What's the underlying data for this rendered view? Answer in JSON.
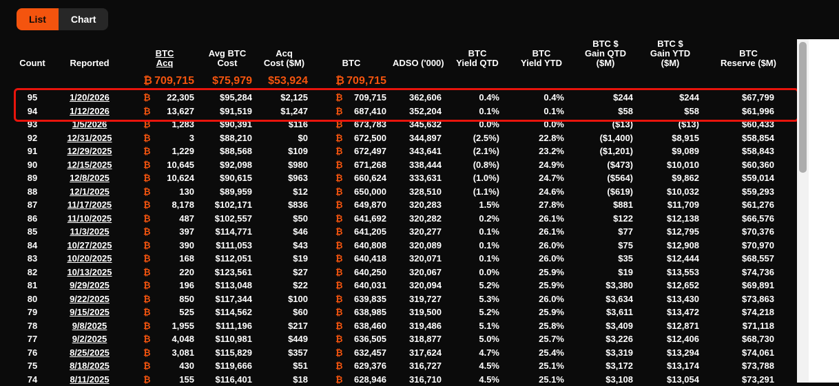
{
  "colors": {
    "accent": "#f4540e",
    "highlight": "#e8140c"
  },
  "btc_symbol": "₿",
  "view_toggle": {
    "list_label": "List",
    "chart_label": "Chart",
    "active_view": "List"
  },
  "table": {
    "headers": {
      "count": [
        "Count"
      ],
      "reported": [
        "Reported"
      ],
      "btc_acq": [
        "BTC",
        "Acq"
      ],
      "avg_cost": [
        "Avg BTC",
        "Cost"
      ],
      "acq_cost": [
        "Acq",
        "Cost ($M)"
      ],
      "btc": [
        "BTC"
      ],
      "adso": [
        "ADSO ('000)"
      ],
      "yield_qtd": [
        "BTC",
        "Yield QTD"
      ],
      "yield_ytd": [
        "BTC",
        "Yield YTD"
      ],
      "gain_qtd": [
        "BTC $",
        "Gain QTD",
        "($M)"
      ],
      "gain_ytd": [
        "BTC $",
        "Gain YTD",
        "($M)"
      ],
      "reserve": [
        "BTC",
        "Reserve ($M)"
      ]
    },
    "totals": {
      "btc_acq": "709,715",
      "avg_cost": "$75,979",
      "acq_cost": "$53,924",
      "btc": "709,715"
    },
    "rows": [
      [
        "95",
        "1/20/2026",
        "22,305",
        "$95,284",
        "$2,125",
        "709,715",
        "362,606",
        "0.4%",
        "0.4%",
        "$244",
        "$244",
        "$67,799"
      ],
      [
        "94",
        "1/12/2026",
        "13,627",
        "$91,519",
        "$1,247",
        "687,410",
        "352,204",
        "0.1%",
        "0.1%",
        "$58",
        "$58",
        "$61,996"
      ],
      [
        "93",
        "1/5/2026",
        "1,283",
        "$90,391",
        "$116",
        "673,783",
        "345,632",
        "0.0%",
        "0.0%",
        "($13)",
        "($13)",
        "$60,433"
      ],
      [
        "92",
        "12/31/2025",
        "3",
        "$88,210",
        "$0",
        "672,500",
        "344,897",
        "(2.5%)",
        "22.8%",
        "($1,400)",
        "$8,915",
        "$58,854"
      ],
      [
        "91",
        "12/29/2025",
        "1,229",
        "$88,568",
        "$109",
        "672,497",
        "343,641",
        "(2.1%)",
        "23.2%",
        "($1,201)",
        "$9,089",
        "$58,843"
      ],
      [
        "90",
        "12/15/2025",
        "10,645",
        "$92,098",
        "$980",
        "671,268",
        "338,444",
        "(0.8%)",
        "24.9%",
        "($473)",
        "$10,010",
        "$60,360"
      ],
      [
        "89",
        "12/8/2025",
        "10,624",
        "$90,615",
        "$963",
        "660,624",
        "333,631",
        "(1.0%)",
        "24.7%",
        "($564)",
        "$9,862",
        "$59,014"
      ],
      [
        "88",
        "12/1/2025",
        "130",
        "$89,959",
        "$12",
        "650,000",
        "328,510",
        "(1.1%)",
        "24.6%",
        "($619)",
        "$10,032",
        "$59,293"
      ],
      [
        "87",
        "11/17/2025",
        "8,178",
        "$102,171",
        "$836",
        "649,870",
        "320,283",
        "1.5%",
        "27.8%",
        "$881",
        "$11,709",
        "$61,276"
      ],
      [
        "86",
        "11/10/2025",
        "487",
        "$102,557",
        "$50",
        "641,692",
        "320,282",
        "0.2%",
        "26.1%",
        "$122",
        "$12,138",
        "$66,576"
      ],
      [
        "85",
        "11/3/2025",
        "397",
        "$114,771",
        "$46",
        "641,205",
        "320,277",
        "0.1%",
        "26.1%",
        "$77",
        "$12,795",
        "$70,376"
      ],
      [
        "84",
        "10/27/2025",
        "390",
        "$111,053",
        "$43",
        "640,808",
        "320,089",
        "0.1%",
        "26.0%",
        "$75",
        "$12,908",
        "$70,970"
      ],
      [
        "83",
        "10/20/2025",
        "168",
        "$112,051",
        "$19",
        "640,418",
        "320,071",
        "0.1%",
        "26.0%",
        "$35",
        "$12,444",
        "$68,557"
      ],
      [
        "82",
        "10/13/2025",
        "220",
        "$123,561",
        "$27",
        "640,250",
        "320,067",
        "0.0%",
        "25.9%",
        "$19",
        "$13,553",
        "$74,736"
      ],
      [
        "81",
        "9/29/2025",
        "196",
        "$113,048",
        "$22",
        "640,031",
        "320,094",
        "5.2%",
        "25.9%",
        "$3,380",
        "$12,652",
        "$69,891"
      ],
      [
        "80",
        "9/22/2025",
        "850",
        "$117,344",
        "$100",
        "639,835",
        "319,727",
        "5.3%",
        "26.0%",
        "$3,634",
        "$13,430",
        "$73,863"
      ],
      [
        "79",
        "9/15/2025",
        "525",
        "$114,562",
        "$60",
        "638,985",
        "319,500",
        "5.2%",
        "25.9%",
        "$3,611",
        "$13,472",
        "$74,218"
      ],
      [
        "78",
        "9/8/2025",
        "1,955",
        "$111,196",
        "$217",
        "638,460",
        "319,486",
        "5.1%",
        "25.8%",
        "$3,409",
        "$12,871",
        "$71,118"
      ],
      [
        "77",
        "9/2/2025",
        "4,048",
        "$110,981",
        "$449",
        "636,505",
        "318,877",
        "5.0%",
        "25.7%",
        "$3,226",
        "$12,406",
        "$68,730"
      ],
      [
        "76",
        "8/25/2025",
        "3,081",
        "$115,829",
        "$357",
        "632,457",
        "317,624",
        "4.7%",
        "25.4%",
        "$3,319",
        "$13,294",
        "$74,061"
      ],
      [
        "75",
        "8/18/2025",
        "430",
        "$119,666",
        "$51",
        "629,376",
        "316,727",
        "4.5%",
        "25.1%",
        "$3,172",
        "$13,174",
        "$73,788"
      ],
      [
        "74",
        "8/11/2025",
        "155",
        "$116,401",
        "$18",
        "628,946",
        "316,710",
        "4.5%",
        "25.1%",
        "$3,108",
        "$13,054",
        "$73,291"
      ]
    ]
  }
}
